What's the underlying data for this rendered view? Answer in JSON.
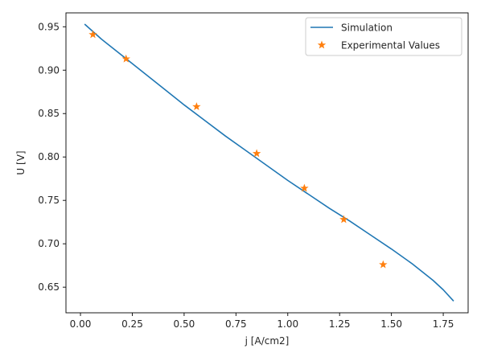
{
  "chart_data": {
    "type": "line",
    "title": "",
    "xlabel": "j [A/cm2]",
    "ylabel": "U [V]",
    "xlim": [
      -0.07,
      1.87
    ],
    "ylim": [
      0.6205,
      0.966
    ],
    "xticks": [
      "0.00",
      "0.25",
      "0.50",
      "0.75",
      "1.00",
      "1.25",
      "1.50",
      "1.75"
    ],
    "xtick_values": [
      0.0,
      0.25,
      0.5,
      0.75,
      1.0,
      1.25,
      1.5,
      1.75
    ],
    "yticks": [
      "0.65",
      "0.70",
      "0.75",
      "0.80",
      "0.85",
      "0.90",
      "0.95"
    ],
    "ytick_values": [
      0.65,
      0.7,
      0.75,
      0.8,
      0.85,
      0.9,
      0.95
    ],
    "grid": false,
    "legend_position": "top-right",
    "series": [
      {
        "name": "Simulation",
        "kind": "line",
        "color": "#1f77b4",
        "x": [
          0.02,
          0.1,
          0.2,
          0.3,
          0.4,
          0.5,
          0.6,
          0.7,
          0.8,
          0.9,
          1.0,
          1.1,
          1.2,
          1.3,
          1.4,
          1.5,
          1.6,
          1.7,
          1.75,
          1.8
        ],
        "y": [
          0.953,
          0.936,
          0.917,
          0.898,
          0.879,
          0.86,
          0.842,
          0.824,
          0.807,
          0.79,
          0.773,
          0.757,
          0.741,
          0.726,
          0.71,
          0.694,
          0.677,
          0.658,
          0.647,
          0.634
        ]
      },
      {
        "name": "Experimental Values",
        "kind": "scatter",
        "marker": "star",
        "color": "#ff7f0e",
        "x": [
          0.06,
          0.22,
          0.56,
          0.85,
          1.08,
          1.27,
          1.46
        ],
        "y": [
          0.941,
          0.913,
          0.858,
          0.804,
          0.764,
          0.728,
          0.676
        ]
      }
    ]
  }
}
